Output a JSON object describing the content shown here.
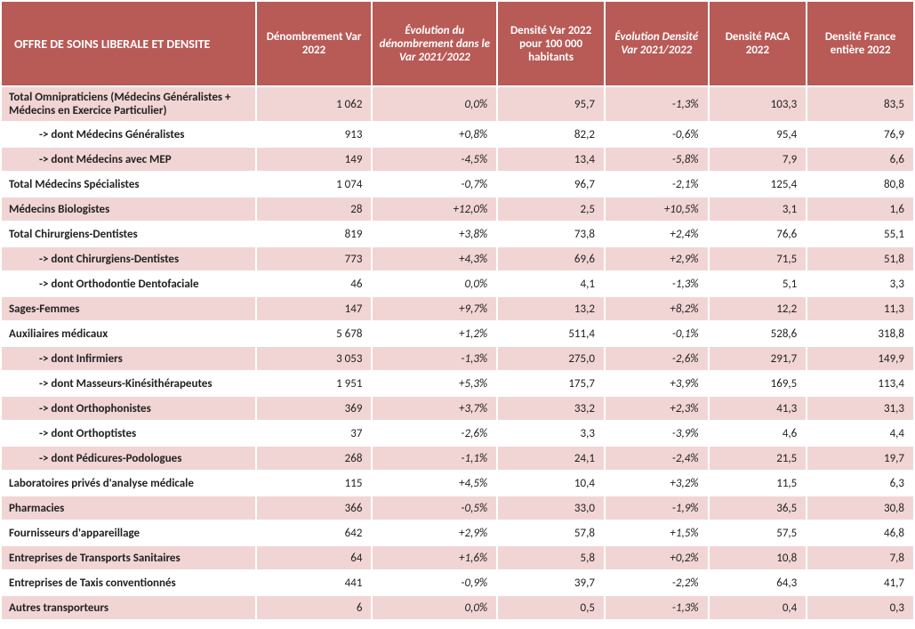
{
  "table": {
    "header_bg": "#b85a56",
    "header_fg": "#ffffff",
    "row_pink": "#f1d5d4",
    "row_white": "#ffffff",
    "columns": [
      {
        "key": "label",
        "label": "OFFRE DE SOINS LIBERALE ET DENSITE",
        "italic": false,
        "is_title": true
      },
      {
        "key": "denombrement",
        "label": "Dénombrement Var 2022",
        "italic": false
      },
      {
        "key": "evo_denomb",
        "label": "Évolution du dénombrement dans le Var 2021/2022",
        "italic": true
      },
      {
        "key": "densite_var",
        "label": "Densité Var 2022 pour 100 000 habitants",
        "italic": false
      },
      {
        "key": "evo_densite",
        "label": "Évolution Densité Var 2021/2022",
        "italic": true
      },
      {
        "key": "densite_paca",
        "label": "Densité PACA 2022",
        "italic": false
      },
      {
        "key": "densite_france",
        "label": "Densité France entière 2022",
        "italic": false
      }
    ],
    "rows": [
      {
        "band": "pink",
        "sub": false,
        "label": "Total Omnipraticiens (Médecins Généralistes + Médecins en Exercice Particulier)",
        "denombrement": "1 062",
        "evo_denomb": "0,0%",
        "densite_var": "95,7",
        "evo_densite": "-1,3%",
        "densite_paca": "103,3",
        "densite_france": "83,5"
      },
      {
        "band": "white",
        "sub": true,
        "label": "-> dont Médecins Généralistes",
        "denombrement": "913",
        "evo_denomb": "+0,8%",
        "densite_var": "82,2",
        "evo_densite": "-0,6%",
        "densite_paca": "95,4",
        "densite_france": "76,9"
      },
      {
        "band": "pink",
        "sub": true,
        "label": "-> dont Médecins avec MEP",
        "denombrement": "149",
        "evo_denomb": "-4,5%",
        "densite_var": "13,4",
        "evo_densite": "-5,8%",
        "densite_paca": "7,9",
        "densite_france": "6,6"
      },
      {
        "band": "white",
        "sub": false,
        "label": "Total Médecins Spécialistes",
        "denombrement": "1 074",
        "evo_denomb": "-0,7%",
        "densite_var": "96,7",
        "evo_densite": "-2,1%",
        "densite_paca": "125,4",
        "densite_france": "80,8"
      },
      {
        "band": "pink",
        "sub": false,
        "label": "Médecins Biologistes",
        "denombrement": "28",
        "evo_denomb": "+12,0%",
        "densite_var": "2,5",
        "evo_densite": "+10,5%",
        "densite_paca": "3,1",
        "densite_france": "1,6"
      },
      {
        "band": "white",
        "sub": false,
        "label": "Total Chirurgiens-Dentistes",
        "denombrement": "819",
        "evo_denomb": "+3,8%",
        "densite_var": "73,8",
        "evo_densite": "+2,4%",
        "densite_paca": "76,6",
        "densite_france": "55,1"
      },
      {
        "band": "pink",
        "sub": true,
        "label": "-> dont Chirurgiens-Dentistes",
        "denombrement": "773",
        "evo_denomb": "+4,3%",
        "densite_var": "69,6",
        "evo_densite": "+2,9%",
        "densite_paca": "71,5",
        "densite_france": "51,8"
      },
      {
        "band": "white",
        "sub": true,
        "label": "-> dont Orthodontie Dentofaciale",
        "denombrement": "46",
        "evo_denomb": "0,0%",
        "densite_var": "4,1",
        "evo_densite": "-1,3%",
        "densite_paca": "5,1",
        "densite_france": "3,3"
      },
      {
        "band": "pink",
        "sub": false,
        "label": "Sages-Femmes",
        "denombrement": "147",
        "evo_denomb": "+9,7%",
        "densite_var": "13,2",
        "evo_densite": "+8,2%",
        "densite_paca": "12,2",
        "densite_france": "11,3"
      },
      {
        "band": "white",
        "sub": false,
        "label": "Auxiliaires médicaux",
        "denombrement": "5 678",
        "evo_denomb": "+1,2%",
        "densite_var": "511,4",
        "evo_densite": "-0,1%",
        "densite_paca": "528,6",
        "densite_france": "318,8"
      },
      {
        "band": "pink",
        "sub": true,
        "label": "-> dont Infirmiers",
        "denombrement": "3 053",
        "evo_denomb": "-1,3%",
        "densite_var": "275,0",
        "evo_densite": "-2,6%",
        "densite_paca": "291,7",
        "densite_france": "149,9"
      },
      {
        "band": "white",
        "sub": true,
        "label": "-> dont Masseurs-Kinésithérapeutes",
        "denombrement": "1 951",
        "evo_denomb": "+5,3%",
        "densite_var": "175,7",
        "evo_densite": "+3,9%",
        "densite_paca": "169,5",
        "densite_france": "113,4"
      },
      {
        "band": "pink",
        "sub": true,
        "label": "-> dont Orthophonistes",
        "denombrement": "369",
        "evo_denomb": "+3,7%",
        "densite_var": "33,2",
        "evo_densite": "+2,3%",
        "densite_paca": "41,3",
        "densite_france": "31,3"
      },
      {
        "band": "white",
        "sub": true,
        "label": "-> dont Orthoptistes",
        "denombrement": "37",
        "evo_denomb": "-2,6%",
        "densite_var": "3,3",
        "evo_densite": "-3,9%",
        "densite_paca": "4,6",
        "densite_france": "4,4"
      },
      {
        "band": "pink",
        "sub": true,
        "label": "-> dont Pédicures-Podologues",
        "denombrement": "268",
        "evo_denomb": "-1,1%",
        "densite_var": "24,1",
        "evo_densite": "-2,4%",
        "densite_paca": "21,5",
        "densite_france": "19,7"
      },
      {
        "band": "white",
        "sub": false,
        "label": "Laboratoires privés d'analyse médicale",
        "denombrement": "115",
        "evo_denomb": "+4,5%",
        "densite_var": "10,4",
        "evo_densite": "+3,2%",
        "densite_paca": "11,5",
        "densite_france": "6,3"
      },
      {
        "band": "pink",
        "sub": false,
        "label": "Pharmacies",
        "denombrement": "366",
        "evo_denomb": "-0,5%",
        "densite_var": "33,0",
        "evo_densite": "-1,9%",
        "densite_paca": "36,5",
        "densite_france": "30,8"
      },
      {
        "band": "white",
        "sub": false,
        "label": "Fournisseurs d'appareillage",
        "denombrement": "642",
        "evo_denomb": "+2,9%",
        "densite_var": "57,8",
        "evo_densite": "+1,5%",
        "densite_paca": "57,5",
        "densite_france": "46,8"
      },
      {
        "band": "pink",
        "sub": false,
        "label": "Entreprises de Transports Sanitaires",
        "denombrement": "64",
        "evo_denomb": "+1,6%",
        "densite_var": "5,8",
        "evo_densite": "+0,2%",
        "densite_paca": "10,8",
        "densite_france": "7,8"
      },
      {
        "band": "white",
        "sub": false,
        "label": "Entreprises de Taxis conventionnés",
        "denombrement": "441",
        "evo_denomb": "-0,9%",
        "densite_var": "39,7",
        "evo_densite": "-2,2%",
        "densite_paca": "64,3",
        "densite_france": "41,7"
      },
      {
        "band": "pink",
        "sub": false,
        "label": "Autres transporteurs",
        "denombrement": "6",
        "evo_denomb": "0,0%",
        "densite_var": "0,5",
        "evo_densite": "-1,3%",
        "densite_paca": "0,4",
        "densite_france": "0,3"
      }
    ]
  }
}
